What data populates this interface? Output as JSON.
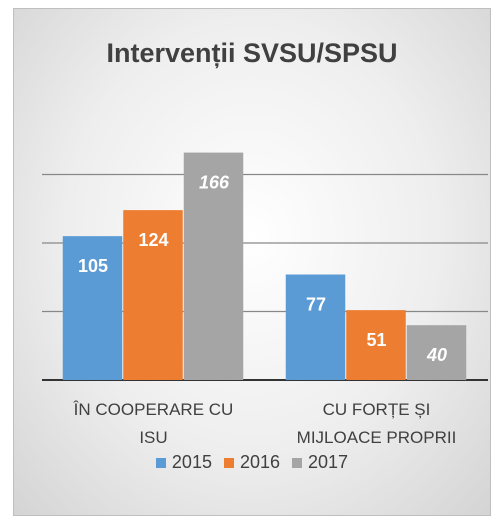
{
  "chart_data": {
    "type": "bar",
    "title": "Intervenții SVSU/SPSU",
    "categories": [
      "ÎN COOPERARE CU ISU",
      "CU FORȚE ȘI MIJLOACE PROPRII"
    ],
    "series": [
      {
        "name": "2015",
        "color": "#5b9bd5",
        "values": [
          105,
          77
        ]
      },
      {
        "name": "2016",
        "color": "#ed7d31",
        "values": [
          124,
          51
        ]
      },
      {
        "name": "2017",
        "color": "#a5a5a5",
        "values": [
          166,
          40
        ]
      }
    ],
    "ylim": [
      0,
      200
    ],
    "yticks": [
      0,
      50,
      100,
      150
    ],
    "grid": true,
    "legend": "bottom"
  }
}
